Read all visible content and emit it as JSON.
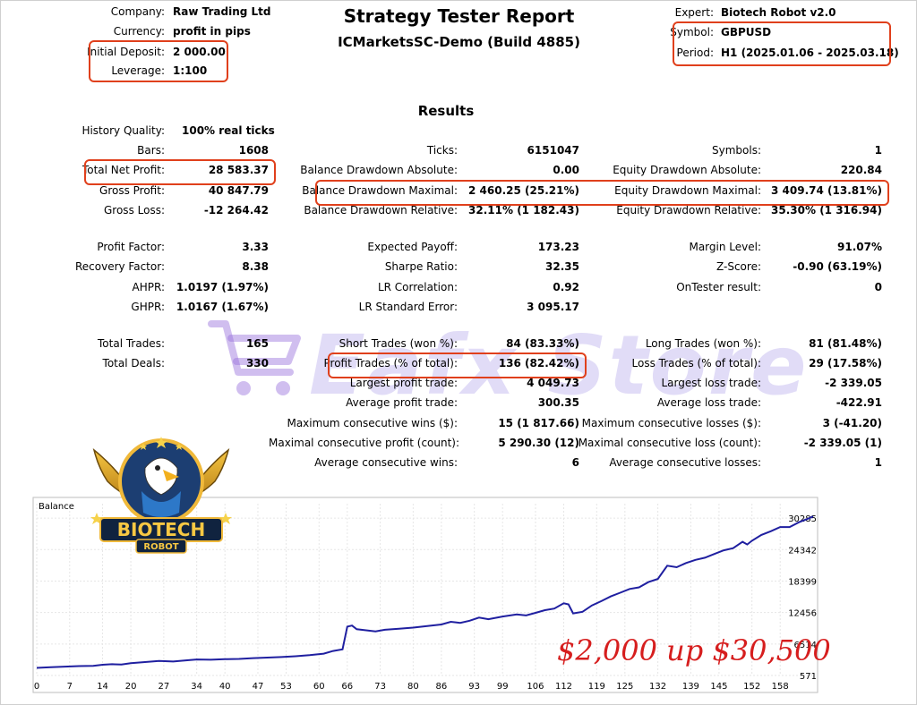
{
  "header": {
    "title": "Strategy Tester Report",
    "subtitle": "ICMarketsSC-Demo (Build 4885)",
    "left": [
      {
        "label": "Company:",
        "value": "Raw Trading Ltd"
      },
      {
        "label": "Currency:",
        "value": "profit in pips"
      },
      {
        "label": "Initial Deposit:",
        "value": "2 000.00"
      },
      {
        "label": "Leverage:",
        "value": "1:100"
      }
    ],
    "right": [
      {
        "label": "Expert:",
        "value": "Biotech Robot v2.0"
      },
      {
        "label": "Symbol:",
        "value": "GBPUSD"
      },
      {
        "label": "Period:",
        "value": "H1 (2025.01.06 - 2025.03.18)"
      }
    ]
  },
  "results_title": "Results",
  "history": {
    "label": "History Quality:",
    "value": "100% real ticks"
  },
  "rows": [
    {
      "cells": [
        {
          "label": "Bars:",
          "value": "1608"
        },
        {
          "label": "Ticks:",
          "value": "6151047"
        },
        {
          "label": "Symbols:",
          "value": "1"
        }
      ]
    },
    {
      "cells": [
        {
          "label": "Total Net Profit:",
          "value": "28 583.37"
        },
        {
          "label": "Balance Drawdown Absolute:",
          "value": "0.00"
        },
        {
          "label": "Equity Drawdown Absolute:",
          "value": "220.84"
        }
      ]
    },
    {
      "cells": [
        {
          "label": "Gross Profit:",
          "value": "40 847.79"
        },
        {
          "label": "Balance Drawdown Maximal:",
          "value": "2 460.25 (25.21%)"
        },
        {
          "label": "Equity Drawdown Maximal:",
          "value": "3 409.74 (13.81%)"
        }
      ]
    },
    {
      "cells": [
        {
          "label": "Gross Loss:",
          "value": "-12 264.42"
        },
        {
          "label": "Balance Drawdown Relative:",
          "value": "32.11% (1 182.43)"
        },
        {
          "label": "Equity Drawdown Relative:",
          "value": "35.30% (1 316.94)"
        }
      ]
    },
    {
      "cells": [
        {
          "label": "Profit Factor:",
          "value": "3.33"
        },
        {
          "label": "Expected Payoff:",
          "value": "173.23"
        },
        {
          "label": "Margin Level:",
          "value": "91.07%"
        }
      ]
    },
    {
      "cells": [
        {
          "label": "Recovery Factor:",
          "value": "8.38"
        },
        {
          "label": "Sharpe Ratio:",
          "value": "32.35"
        },
        {
          "label": "Z-Score:",
          "value": "-0.90 (63.19%)"
        }
      ]
    },
    {
      "cells": [
        {
          "label": "AHPR:",
          "value": "1.0197 (1.97%)"
        },
        {
          "label": "LR Correlation:",
          "value": "0.92"
        },
        {
          "label": "OnTester result:",
          "value": "0"
        }
      ]
    },
    {
      "cells": [
        {
          "label": "GHPR:",
          "value": "1.0167 (1.67%)"
        },
        {
          "label": "LR Standard Error:",
          "value": "3 095.17"
        },
        {
          "label": "",
          "value": ""
        }
      ]
    },
    {
      "cells": [
        {
          "label": "Total Trades:",
          "value": "165"
        },
        {
          "label": "Short Trades (won %):",
          "value": "84 (83.33%)"
        },
        {
          "label": "Long Trades (won %):",
          "value": "81 (81.48%)"
        }
      ]
    },
    {
      "cells": [
        {
          "label": "Total Deals:",
          "value": "330"
        },
        {
          "label": "Profit Trades (% of total):",
          "value": "136 (82.42%)"
        },
        {
          "label": "Loss Trades (% of total):",
          "value": "29 (17.58%)"
        }
      ]
    },
    {
      "cells": [
        {
          "label": "",
          "value": ""
        },
        {
          "label": "Largest profit trade:",
          "value": "4 049.73"
        },
        {
          "label": "Largest loss trade:",
          "value": "-2 339.05"
        }
      ]
    },
    {
      "cells": [
        {
          "label": "",
          "value": ""
        },
        {
          "label": "Average profit trade:",
          "value": "300.35"
        },
        {
          "label": "Average loss trade:",
          "value": "-422.91"
        }
      ]
    },
    {
      "cells": [
        {
          "label": "",
          "value": ""
        },
        {
          "label": "Maximum consecutive wins ($):",
          "value": "15 (1 817.66)"
        },
        {
          "label": "Maximum consecutive losses ($):",
          "value": "3 (-41.20)"
        }
      ]
    },
    {
      "cells": [
        {
          "label": "",
          "value": ""
        },
        {
          "label": "Maximal consecutive profit (count):",
          "value": "5 290.30 (12)"
        },
        {
          "label": "Maximal consecutive loss (count):",
          "value": "-2 339.05 (1)"
        }
      ]
    },
    {
      "cells": [
        {
          "label": "",
          "value": ""
        },
        {
          "label": "Average consecutive wins:",
          "value": "6"
        },
        {
          "label": "Average consecutive losses:",
          "value": "1"
        }
      ]
    }
  ],
  "watermark": "Eafx Store",
  "logo": {
    "line1": "BIOTECH",
    "line2": "ROBOT"
  },
  "annotation": "$2,000 up $30,500",
  "colors": {
    "accent_box": "#e0401c",
    "series_line": "#1f1fa0",
    "annotation": "#d61e1e",
    "watermark": "#8a6fe0"
  },
  "chart_data": {
    "type": "line",
    "title": "Balance",
    "series": [
      {
        "values": []
      }
    ],
    "x_ticks": [
      "0",
      "7",
      "14",
      "20",
      "27",
      "34",
      "40",
      "47",
      "53",
      "60",
      "66",
      "73",
      "80",
      "86",
      "93",
      "99",
      "106",
      "112",
      "119",
      "125",
      "132",
      "139",
      "145",
      "152",
      "158"
    ],
    "y_ticks": [
      "571",
      "6514",
      "12456",
      "18399",
      "24342",
      "30285"
    ],
    "xlim": [
      0,
      165
    ],
    "ylim": [
      571,
      33000
    ],
    "points": [
      [
        0,
        2000
      ],
      [
        3,
        2150
      ],
      [
        6,
        2250
      ],
      [
        9,
        2350
      ],
      [
        12,
        2400
      ],
      [
        14,
        2600
      ],
      [
        16,
        2700
      ],
      [
        18,
        2650
      ],
      [
        20,
        2900
      ],
      [
        23,
        3100
      ],
      [
        26,
        3300
      ],
      [
        29,
        3200
      ],
      [
        32,
        3450
      ],
      [
        34,
        3600
      ],
      [
        37,
        3550
      ],
      [
        40,
        3650
      ],
      [
        43,
        3700
      ],
      [
        46,
        3850
      ],
      [
        49,
        3950
      ],
      [
        52,
        4050
      ],
      [
        55,
        4200
      ],
      [
        58,
        4400
      ],
      [
        61,
        4700
      ],
      [
        63,
        5200
      ],
      [
        65,
        5500
      ],
      [
        66,
        9800
      ],
      [
        67,
        10000
      ],
      [
        68,
        9300
      ],
      [
        70,
        9100
      ],
      [
        72,
        8900
      ],
      [
        74,
        9200
      ],
      [
        77,
        9400
      ],
      [
        80,
        9600
      ],
      [
        83,
        9900
      ],
      [
        86,
        10200
      ],
      [
        88,
        10700
      ],
      [
        90,
        10500
      ],
      [
        92,
        10900
      ],
      [
        94,
        11500
      ],
      [
        96,
        11200
      ],
      [
        99,
        11700
      ],
      [
        102,
        12100
      ],
      [
        104,
        11900
      ],
      [
        106,
        12400
      ],
      [
        108,
        12900
      ],
      [
        110,
        13200
      ],
      [
        112,
        14200
      ],
      [
        113,
        14000
      ],
      [
        114,
        12300
      ],
      [
        116,
        12600
      ],
      [
        118,
        13800
      ],
      [
        120,
        14600
      ],
      [
        122,
        15500
      ],
      [
        124,
        16200
      ],
      [
        126,
        16900
      ],
      [
        128,
        17200
      ],
      [
        130,
        18200
      ],
      [
        132,
        18800
      ],
      [
        134,
        21300
      ],
      [
        136,
        21000
      ],
      [
        138,
        21800
      ],
      [
        140,
        22400
      ],
      [
        142,
        22800
      ],
      [
        144,
        23500
      ],
      [
        146,
        24200
      ],
      [
        148,
        24600
      ],
      [
        150,
        25800
      ],
      [
        151,
        25300
      ],
      [
        152,
        26000
      ],
      [
        154,
        27100
      ],
      [
        156,
        27800
      ],
      [
        158,
        28600
      ],
      [
        160,
        28600
      ],
      [
        162,
        29500
      ],
      [
        164,
        30200
      ],
      [
        165,
        30600
      ]
    ]
  }
}
